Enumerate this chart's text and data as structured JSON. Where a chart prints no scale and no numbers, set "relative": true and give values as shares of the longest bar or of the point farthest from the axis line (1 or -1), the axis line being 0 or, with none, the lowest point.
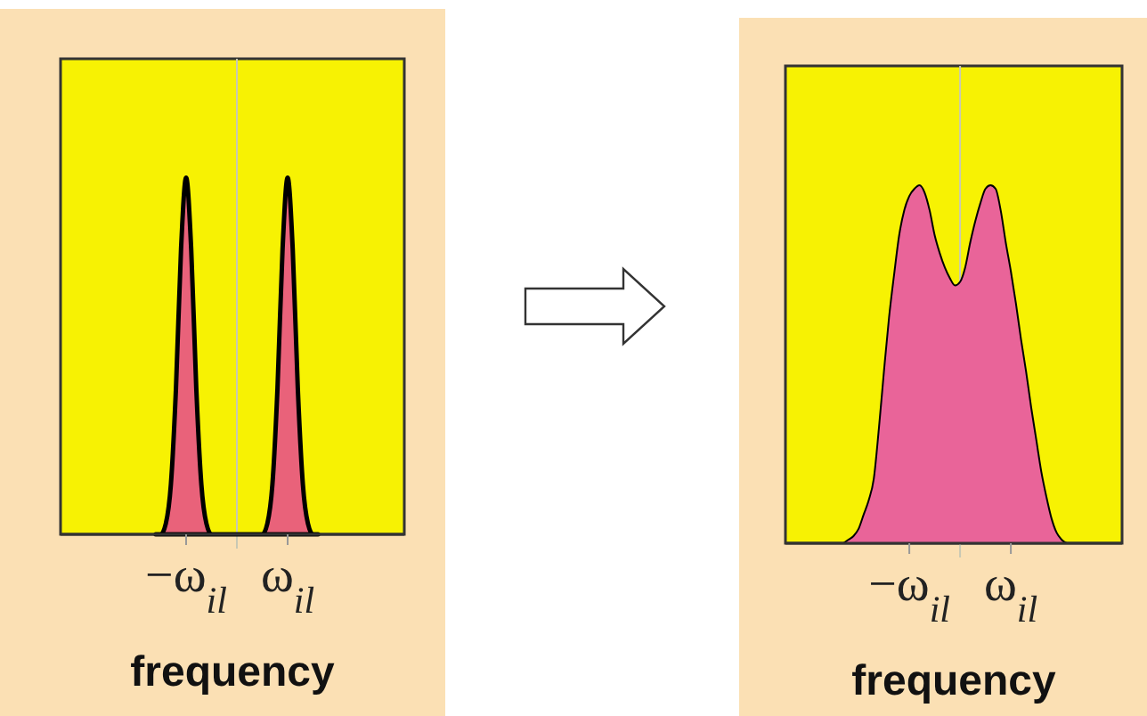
{
  "chart_data": [
    {
      "type": "area",
      "relative": true,
      "xlabel": "frequency",
      "categories": [
        null,
        null,
        null,
        null,
        null,
        null,
        "−ω$_{il}$",
        null,
        null,
        null,
        null,
        null,
        null,
        null,
        null,
        null,
        null,
        null,
        null,
        null,
        null,
        null,
        null,
        null,
        null,
        null,
        "ω$_{il}$",
        null,
        null,
        null,
        null,
        null,
        null
      ],
      "series": [
        {
          "color": "#e9627a",
          "values": [
            0,
            0,
            0.03,
            0.14,
            0.41,
            0.8,
            1,
            0.8,
            0.41,
            0.14,
            0.03,
            0,
            0,
            0,
            0,
            0,
            0,
            0,
            0,
            0,
            0,
            0,
            0.03,
            0.14,
            0.41,
            0.8,
            1,
            0.8,
            0.41,
            0.14,
            0.03,
            0,
            0
          ]
        }
      ]
    },
    {
      "type": "area",
      "relative": true,
      "xlabel": "frequency",
      "categories": [
        null,
        null,
        null,
        null,
        null,
        null,
        null,
        null,
        null,
        null,
        null,
        null,
        null,
        "−ω$_{il}$",
        null,
        null,
        null,
        null,
        null,
        null,
        null,
        null,
        null,
        null,
        null,
        null,
        null,
        null,
        null,
        null,
        null,
        null,
        null,
        "ω$_{il}$",
        null,
        null,
        null,
        null,
        null,
        null,
        null,
        null,
        null,
        null,
        null
      ],
      "series": [
        {
          "color": "#e96499",
          "values": [
            0,
            0.01,
            0.02,
            0.04,
            0.08,
            0.12,
            0.18,
            0.32,
            0.48,
            0.63,
            0.75,
            0.86,
            0.93,
            0.97,
            0.99,
            1,
            0.98,
            0.93,
            0.86,
            0.81,
            0.77,
            0.74,
            0.72,
            0.73,
            0.77,
            0.84,
            0.9,
            0.95,
            0.99,
            1,
            0.99,
            0.93,
            0.84,
            0.76,
            0.67,
            0.57,
            0.48,
            0.38,
            0.29,
            0.2,
            0.13,
            0.07,
            0.03,
            0.01,
            0
          ]
        }
      ]
    }
  ]
}
